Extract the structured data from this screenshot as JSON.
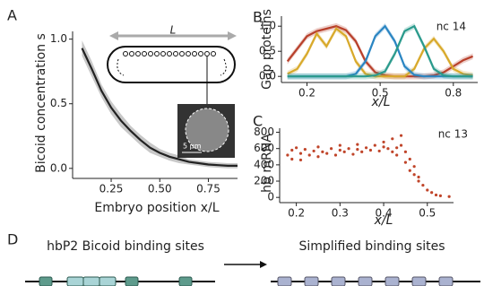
{
  "panel_labels": [
    "A",
    "B",
    "C",
    "D"
  ],
  "chart_data": [
    {
      "type": "line",
      "ylabel": "Bicoid concentration s",
      "xlabel": "Embryo position x/L",
      "annotations": [
        "L",
        "5 μm"
      ],
      "x": [
        0.1,
        0.15,
        0.2,
        0.25,
        0.3,
        0.35,
        0.4,
        0.45,
        0.5,
        0.55,
        0.6,
        0.65,
        0.7,
        0.75,
        0.8,
        0.85,
        0.9
      ],
      "series": [
        {
          "color": "#222222",
          "values": [
            0.93,
            0.77,
            0.6,
            0.47,
            0.37,
            0.29,
            0.22,
            0.16,
            0.12,
            0.09,
            0.07,
            0.05,
            0.04,
            0.03,
            0.025,
            0.02,
            0.02
          ],
          "error": [
            0.06,
            0.06,
            0.05,
            0.05,
            0.05,
            0.04,
            0.04,
            0.04,
            0.03,
            0.03,
            0.03,
            0.02,
            0.02,
            0.02,
            0.02,
            0.02,
            0.02
          ]
        }
      ],
      "xlim": [
        0.07,
        0.9
      ],
      "ylim": [
        -0.05,
        1.06
      ],
      "xticks": [
        0.25,
        {
          "value": 0.5,
          "label": "0.50"
        },
        0.75
      ],
      "yticks": [
        {
          "value": 0,
          "label": "0.0"
        },
        0.5,
        {
          "value": 1,
          "label": "1.0"
        }
      ]
    },
    {
      "type": "line",
      "ylabel": "Gap proteins",
      "xlabel": "x/L",
      "annotations": [
        "nc 14"
      ],
      "x": [
        0.12,
        0.16,
        0.2,
        0.24,
        0.28,
        0.32,
        0.36,
        0.4,
        0.44,
        0.48,
        0.52,
        0.56,
        0.6,
        0.64,
        0.68,
        0.72,
        0.76,
        0.8,
        0.84,
        0.88
      ],
      "series": [
        {
          "color": "#b8402b",
          "error": 0.06,
          "values": [
            0.3,
            0.55,
            0.8,
            0.9,
            0.95,
            1.0,
            0.92,
            0.7,
            0.3,
            0.08,
            0.02,
            0,
            0,
            0,
            0,
            0.02,
            0.08,
            0.2,
            0.32,
            0.4
          ]
        },
        {
          "color": "#d8a92a",
          "error": 0.06,
          "values": [
            0.05,
            0.15,
            0.45,
            0.85,
            0.6,
            0.95,
            0.8,
            0.3,
            0.05,
            0,
            0,
            0,
            0,
            0.15,
            0.55,
            0.75,
            0.5,
            0.15,
            0.05,
            0.02
          ]
        },
        {
          "color": "#2a85c2",
          "error": 0.06,
          "values": [
            0,
            0,
            0,
            0,
            0,
            0,
            0,
            0.05,
            0.3,
            0.8,
            1.0,
            0.7,
            0.2,
            0.03,
            0,
            0,
            0,
            0,
            0,
            0
          ]
        },
        {
          "color": "#2a9a8c",
          "error": 0.06,
          "values": [
            0,
            0,
            0,
            0,
            0,
            0,
            0,
            0,
            0,
            0.02,
            0.1,
            0.45,
            0.9,
            1.0,
            0.6,
            0.15,
            0.02,
            0,
            0,
            0
          ]
        }
      ],
      "xlim": [
        0.11,
        0.9
      ],
      "ylim": [
        -0.05,
        1.2
      ],
      "xticks": [
        0.2,
        0.5,
        0.8
      ],
      "yticks": [
        {
          "value": 0,
          "label": "0.0"
        },
        0.5,
        {
          "value": 1,
          "label": "1.0"
        }
      ]
    },
    {
      "type": "scatter",
      "ylabel": "hb mRNA",
      "xlabel": "x/L",
      "annotations": [
        "nc 13"
      ],
      "x": [
        0.18,
        0.19,
        0.19,
        0.2,
        0.21,
        0.21,
        0.22,
        0.23,
        0.24,
        0.25,
        0.25,
        0.26,
        0.27,
        0.28,
        0.29,
        0.3,
        0.3,
        0.31,
        0.32,
        0.33,
        0.34,
        0.34,
        0.35,
        0.36,
        0.37,
        0.38,
        0.39,
        0.4,
        0.4,
        0.41,
        0.42,
        0.42,
        0.43,
        0.43,
        0.44,
        0.44,
        0.45,
        0.45,
        0.46,
        0.46,
        0.47,
        0.47,
        0.48,
        0.48,
        0.49,
        0.5,
        0.51,
        0.52,
        0.53,
        0.55
      ],
      "series": [
        {
          "color": "#c0452a",
          "values": [
            520,
            580,
            470,
            610,
            540,
            460,
            590,
            520,
            570,
            500,
            620,
            560,
            540,
            600,
            520,
            580,
            640,
            560,
            600,
            530,
            590,
            650,
            560,
            610,
            580,
            640,
            570,
            620,
            680,
            600,
            560,
            720,
            610,
            520,
            640,
            760,
            560,
            430,
            470,
            330,
            280,
            380,
            200,
            250,
            150,
            90,
            60,
            30,
            20,
            10
          ]
        }
      ],
      "xlim": [
        0.17,
        0.56
      ],
      "ylim": [
        -20,
        850
      ],
      "xticks": [
        0.2,
        0.3,
        0.4,
        0.5
      ],
      "yticks": [
        0,
        200,
        400,
        600,
        800
      ]
    }
  ],
  "diagram": {
    "left_title": "hbP2 Bicoid binding sites",
    "right_title": "Simplified binding sites"
  }
}
